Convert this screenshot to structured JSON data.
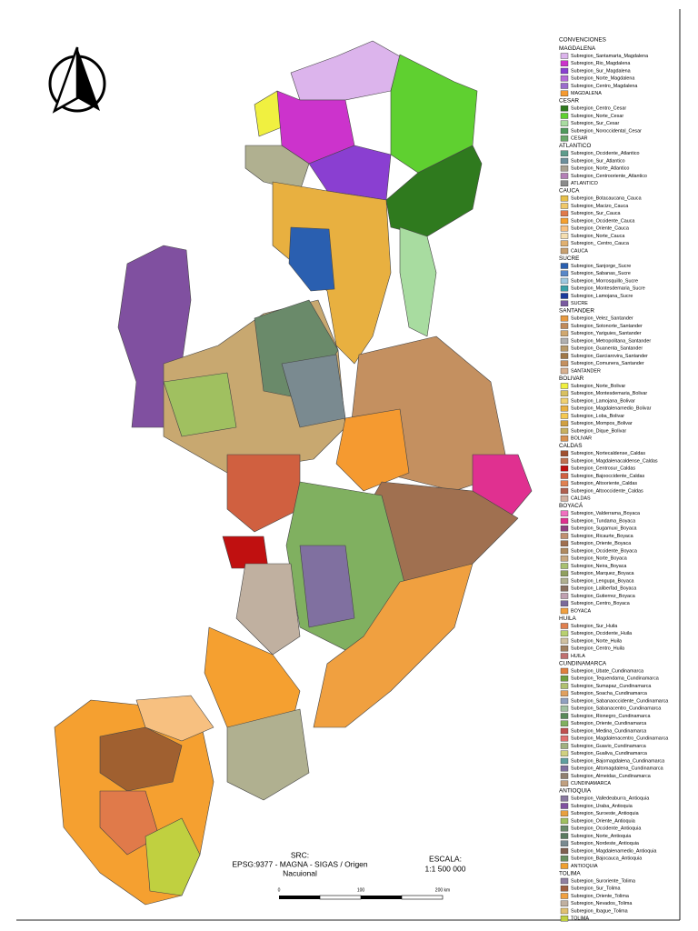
{
  "legend": {
    "title": "CONVENCIONES",
    "groups": [
      {
        "name": "MAGDALENA",
        "items": [
          {
            "label": "Subregion_Santamarta_Magdalena",
            "color": "#dcb4ec"
          },
          {
            "label": "Subregion_Rio_Magdalena",
            "color": "#cc33cc"
          },
          {
            "label": "Subregion_Sur_Magdalena",
            "color": "#8a3fd1"
          },
          {
            "label": "Subregion_Norte_Magdalena",
            "color": "#b56ad8"
          },
          {
            "label": "Subregion_Centro_Magdalena",
            "color": "#9b6ccc"
          },
          {
            "label": "MAGDALENA",
            "color": "#f59a30"
          }
        ]
      },
      {
        "name": "CESAR",
        "items": [
          {
            "label": "Subregion_Centro_Cesar",
            "color": "#2f7a1e"
          },
          {
            "label": "Subregion_Norte_Cesar",
            "color": "#5fd030"
          },
          {
            "label": "Subregion_Sur_Cesar",
            "color": "#a8dca0"
          },
          {
            "label": "Subregion_Noroccidental_Cesar",
            "color": "#4f9a5c"
          },
          {
            "label": "CESAR",
            "color": "#6aa86a"
          }
        ]
      },
      {
        "name": "ATLANTICO",
        "items": [
          {
            "label": "Subregion_Occidente_Atlantico",
            "color": "#5f9c8c"
          },
          {
            "label": "Subregion_Sur_Atlantico",
            "color": "#6d8f9c"
          },
          {
            "label": "Subregion_Norte_Atlantico",
            "color": "#a9a090"
          },
          {
            "label": "Subregion_Centrooriente_Atlantico",
            "color": "#b47fb6"
          },
          {
            "label": "ATLANTICO",
            "color": "#8c8c8c"
          }
        ]
      },
      {
        "name": "CAUCA",
        "items": [
          {
            "label": "Subregion_Botacaucana_Cauca",
            "color": "#e8c04a"
          },
          {
            "label": "Subregion_Macizo_Cauca",
            "color": "#f0c86a"
          },
          {
            "label": "Subregion_Sur_Cauca",
            "color": "#e07a4a"
          },
          {
            "label": "Subregion_Occidente_Cauca",
            "color": "#f5a030"
          },
          {
            "label": "Subregion_Oriente_Cauca",
            "color": "#f7c080"
          },
          {
            "label": "Subregion_Norte_Cauca",
            "color": "#f5deb0"
          },
          {
            "label": "Subregion_ Centro_Cauca",
            "color": "#e0b070"
          },
          {
            "label": "CAUCA",
            "color": "#c8a070"
          }
        ]
      },
      {
        "name": "SUCRE",
        "items": [
          {
            "label": "Subregion_Sanjorge_Sucre",
            "color": "#2a5fb0"
          },
          {
            "label": "Subregion_Sabanas_Sucre",
            "color": "#5a88c8"
          },
          {
            "label": "Subregion_Morrosquillo_Sucre",
            "color": "#9ec8e0"
          },
          {
            "label": "Subregion_Montesdemaria_Sucre",
            "color": "#3aa0a8"
          },
          {
            "label": "Subregion_Lamojana_Sucre",
            "color": "#1a3a9c"
          },
          {
            "label": "SUCRE",
            "color": "#7a5aa0"
          }
        ]
      },
      {
        "name": "SANTANDER",
        "items": [
          {
            "label": "Subregion_Velez_Santander",
            "color": "#e89a40"
          },
          {
            "label": "Subregion_Sotonorte_Santander",
            "color": "#c08a5a"
          },
          {
            "label": "Subregion_Yariguies_Santander",
            "color": "#d0a870"
          },
          {
            "label": "Subregion_Metropolitana_Santander",
            "color": "#b0b0b0"
          },
          {
            "label": "Subregion_Guanenta_Santander",
            "color": "#b89a6a"
          },
          {
            "label": "Subregion_Garciarovira_Santander",
            "color": "#a07848"
          },
          {
            "label": "Subregion_Comunera_Santander",
            "color": "#c49060"
          },
          {
            "label": "SANTANDER",
            "color": "#d8b090"
          }
        ]
      },
      {
        "name": "BOLIVAR",
        "items": [
          {
            "label": "Subregion_Norte_Bolivar",
            "color": "#f0f040"
          },
          {
            "label": "Subregion_Montesdemaria_Bolivar",
            "color": "#d8c060"
          },
          {
            "label": "Subregion_Lamojana_Bolivar",
            "color": "#f0d070"
          },
          {
            "label": "Subregion_Magdalenamedio_Bolivar",
            "color": "#e8b040"
          },
          {
            "label": "Subregion_Loba_Bolivar",
            "color": "#f5c850"
          },
          {
            "label": "Subregion_Mompos_Bolivar",
            "color": "#d0a040"
          },
          {
            "label": "Subregion_Dique_Bolivar",
            "color": "#c8b060"
          },
          {
            "label": "BOLIVAR",
            "color": "#d89050"
          }
        ]
      },
      {
        "name": "CALDAS",
        "items": [
          {
            "label": "Subregion_Nortecaldense_Caldas",
            "color": "#a05030"
          },
          {
            "label": "Subregion_Magdalenacaldense_Caldas",
            "color": "#c07050"
          },
          {
            "label": "Subregion_Centrosur_Caldas",
            "color": "#c01010"
          },
          {
            "label": "Subregion_Bajooccidente_Caldas",
            "color": "#d06040"
          },
          {
            "label": "Subregion_Altooriente_Caldas",
            "color": "#e08050"
          },
          {
            "label": "Subregion_Altooccidente_Caldas",
            "color": "#b06050"
          },
          {
            "label": "CALDAS",
            "color": "#d0b0a0"
          }
        ]
      },
      {
        "name": "BOYACÁ",
        "items": [
          {
            "label": "Subregion_Valderrama_Boyaca",
            "color": "#f070c0"
          },
          {
            "label": "Subregion_Tundama_Boyaca",
            "color": "#e03090"
          },
          {
            "label": "Subregion_Sugamuxi_Boyaca",
            "color": "#904080"
          },
          {
            "label": "Subregion_Ricaurte_Boyaca",
            "color": "#c09070"
          },
          {
            "label": "Subregion_Oriente_Boyaca",
            "color": "#a07050"
          },
          {
            "label": "Subregion_Occidente_Boyaca",
            "color": "#b08a60"
          },
          {
            "label": "Subregion_Norte_Boyaca",
            "color": "#c8a880"
          },
          {
            "label": "Subregion_Neira_Boyaca",
            "color": "#a8c070"
          },
          {
            "label": "Subregion_Marquez_Boyaca",
            "color": "#90a060"
          },
          {
            "label": "Subregion_Lengupa_Boyaca",
            "color": "#b0b090"
          },
          {
            "label": "Subregion_Laliberfad_Boyaca",
            "color": "#8a7060"
          },
          {
            "label": "Subregion_Gutierrez_Boyaca",
            "color": "#c0a0b0"
          },
          {
            "label": "Subregion_Centro_Boyaca",
            "color": "#7a6a9a"
          },
          {
            "label": "BOYACA",
            "color": "#f0a040"
          }
        ]
      },
      {
        "name": "HUILA",
        "items": [
          {
            "label": "Subregion_Sur_Huila",
            "color": "#e08050"
          },
          {
            "label": "Subregion_Occidente_Huila",
            "color": "#b8d070"
          },
          {
            "label": "Subregion_Norte_Huila",
            "color": "#d0c0a0"
          },
          {
            "label": "Subregion_Centro_Huila",
            "color": "#a08060"
          },
          {
            "label": "HUILA",
            "color": "#c07070"
          }
        ]
      },
      {
        "name": "CUNDINAMARCA",
        "items": [
          {
            "label": "Subregion_Ubate_Cundinamarca",
            "color": "#e08040"
          },
          {
            "label": "Subregion_Tequendama_Cundinamarca",
            "color": "#70a040"
          },
          {
            "label": "Subregion_Sumapaz_Cundinamarca",
            "color": "#b0c070"
          },
          {
            "label": "Subregion_Soacha_Cundinamarca",
            "color": "#e0a060"
          },
          {
            "label": "Subregion_Sabanaoccidente_Cundinamarca",
            "color": "#90a0c0"
          },
          {
            "label": "Subregion_Sabanacentro_Cundinamarca",
            "color": "#a0c0a0"
          },
          {
            "label": "Subregion_Rionegro_Cundinamarca",
            "color": "#5a8a5a"
          },
          {
            "label": "Subregion_Oriente_Cundinamarca",
            "color": "#80b060"
          },
          {
            "label": "Subregion_Medina_Cundinamarca",
            "color": "#c05050"
          },
          {
            "label": "Subregion_Magdalenacentro_Cundinamarca",
            "color": "#e07070"
          },
          {
            "label": "Subregion_Guavio_Cundinamarca",
            "color": "#a0b080"
          },
          {
            "label": "Subregion_Gualiva_Cundinamarca",
            "color": "#d0d080"
          },
          {
            "label": "Subregion_Bajomagdalena_Cundinamarca",
            "color": "#60a0a0"
          },
          {
            "label": "Subregion_Altomagdalena_Cundinamarca",
            "color": "#8070a0"
          },
          {
            "label": "Subregion_Almeidas_Cundinamarca",
            "color": "#908070"
          },
          {
            "label": "CUNDINAMARCA",
            "color": "#c0a080"
          }
        ]
      },
      {
        "name": "ANTIOQUIA",
        "items": [
          {
            "label": "Subregion_Valledeaburra_Antioquia",
            "color": "#8a7aa0"
          },
          {
            "label": "Subregion_Uraba_Antioquia",
            "color": "#8050a0"
          },
          {
            "label": "Subregion_Suroeste_Antioquia",
            "color": "#e8a040"
          },
          {
            "label": "Subregion_Oriente_Antioquia",
            "color": "#a0c060"
          },
          {
            "label": "Subregion_Occidente_Antioquia",
            "color": "#6a8a6a"
          },
          {
            "label": "Subregion_Norte_Antioquia",
            "color": "#5a7a60"
          },
          {
            "label": "Subregion_Nordeste_Antioquia",
            "color": "#7a8a90"
          },
          {
            "label": "Subregion_Magdalenamedio_Antioquia",
            "color": "#806050"
          },
          {
            "label": "Subregion_Bajocauca_Antioquia",
            "color": "#6a9060"
          },
          {
            "label": "ANTIOQUIA",
            "color": "#f0a030"
          }
        ]
      },
      {
        "name": "TOLIMA",
        "items": [
          {
            "label": "Subregion_Suroriente_Tolima",
            "color": "#9080a0"
          },
          {
            "label": "Subregion_Sur_Tolima",
            "color": "#a06040"
          },
          {
            "label": "Subregion_Oriente_Tolima",
            "color": "#f0a040"
          },
          {
            "label": "Subregion_Nevados_Tolima",
            "color": "#c0b0a0"
          },
          {
            "label": "Subregion_Ibague_Tolima",
            "color": "#e0c070"
          },
          {
            "label": "TOLIMA",
            "color": "#c0d040"
          }
        ]
      }
    ]
  },
  "crs": {
    "label": "SRC:",
    "lines": [
      "EPSG:9377 - MAGNA - SIGAS / Origen",
      "Nacuional"
    ]
  },
  "scale": {
    "label": "ESCALA:",
    "text": "1:1 500 000",
    "bar_labels": [
      "0",
      "100",
      "200 km"
    ]
  }
}
